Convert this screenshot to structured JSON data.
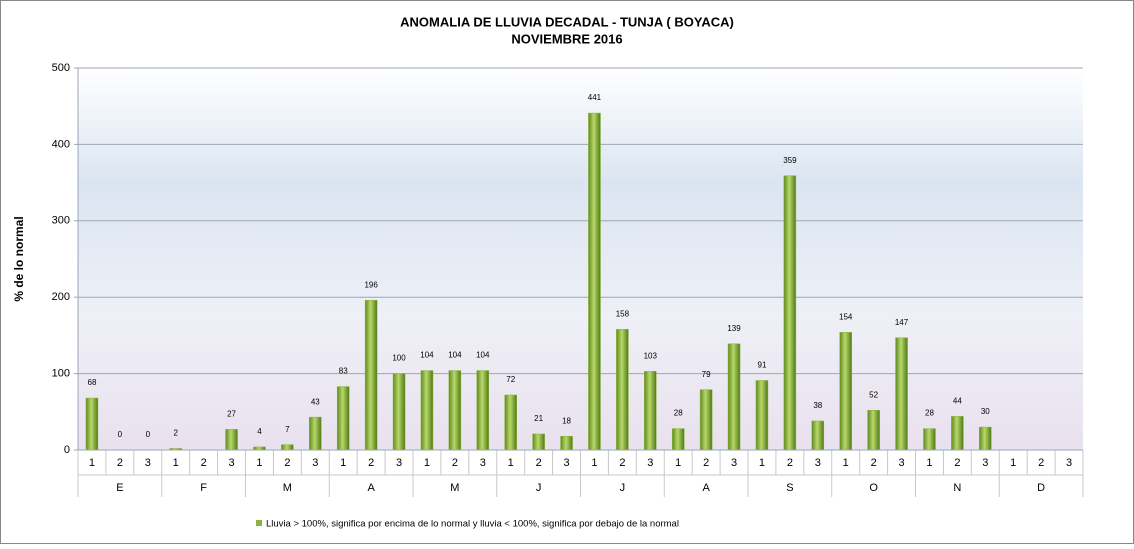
{
  "chart_data": {
    "type": "bar",
    "title": "ANOMALIA DE LLUVIA DECADAL - TUNJA  ( BOYACA)",
    "subtitle": "NOVIEMBRE 2016",
    "y_label": "% de lo normal",
    "categories": [
      "1",
      "2",
      "3",
      "1",
      "2",
      "3",
      "1",
      "2",
      "3",
      "1",
      "2",
      "3",
      "1",
      "2",
      "3",
      "1",
      "2",
      "3",
      "1",
      "2",
      "3",
      "1",
      "2",
      "3",
      "1",
      "2",
      "3",
      "1",
      "2",
      "3",
      "1",
      "2",
      "3",
      "1",
      "2",
      "3"
    ],
    "category_groups": [
      "E",
      "F",
      "M",
      "A",
      "M",
      "J",
      "J",
      "A",
      "S",
      "O",
      "N",
      "D"
    ],
    "series": [
      {
        "name": "Lluvia > 100%, significa por encima de lo normal y lluvia < 100%, significa por debajo de la normal",
        "color": "#8db43a",
        "values": [
          68,
          0,
          0,
          2,
          null,
          27,
          4,
          7,
          43,
          83,
          196,
          100,
          104,
          104,
          104,
          72,
          21,
          18,
          441,
          158,
          103,
          28,
          79,
          139,
          91,
          359,
          38,
          154,
          52,
          147,
          28,
          44,
          30,
          null,
          null,
          null
        ]
      }
    ],
    "ylim": [
      0,
      500
    ],
    "yticks": [
      0,
      100,
      200,
      300,
      400,
      500
    ],
    "grid": true
  }
}
